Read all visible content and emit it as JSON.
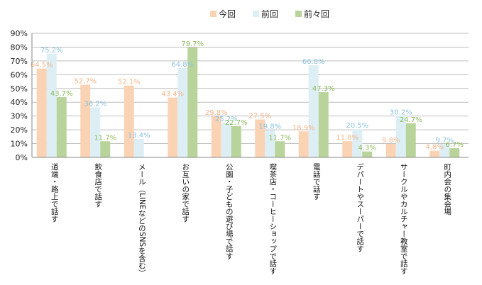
{
  "chart_data": {
    "type": "bar",
    "title": "",
    "xlabel": "",
    "ylabel": "",
    "ylim": [
      0,
      90
    ],
    "ytick_step": 10,
    "ytick_suffix": "%",
    "grid": true,
    "legend_position": "top",
    "categories": [
      "道端・路上で話す",
      "飲食店で話す",
      "メール（LINEなどのSNSを含む）",
      "お互いの家で話す",
      "公園・子どもの遊び場で話す",
      "喫茶店・コーヒーショップで話す",
      "電話で話す",
      "デパートやスーパーで話す",
      "サークルやカルチャー教室で話す",
      "町内会の集会場"
    ],
    "series": [
      {
        "name": "今回",
        "color": "#FAD3B5",
        "label_color": "#F5B58A",
        "values": [
          64.5,
          52.7,
          52.1,
          43.4,
          29.8,
          27.5,
          18.9,
          11.8,
          9.8,
          4.8
        ]
      },
      {
        "name": "前回",
        "color": "#DDEEF5",
        "label_color": "#8DC3DD",
        "values": [
          75.2,
          36.2,
          13.4,
          64.8,
          25.2,
          19.8,
          66.8,
          20.5,
          30.2,
          9.7
        ]
      },
      {
        "name": "前々回",
        "color": "#B8D49A",
        "label_color": "#8DBB5C",
        "values": [
          43.7,
          11.7,
          null,
          79.7,
          22.7,
          11.7,
          47.3,
          4.3,
          24.7,
          6.7
        ]
      }
    ]
  }
}
